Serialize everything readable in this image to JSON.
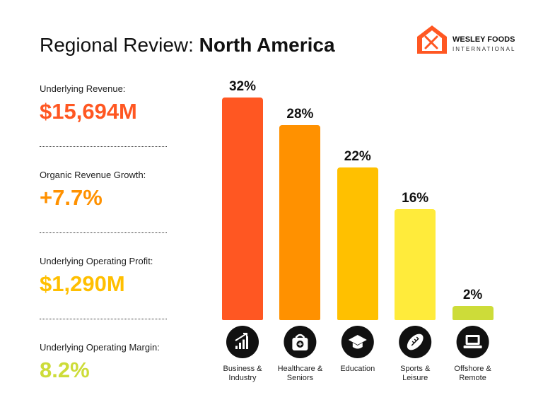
{
  "chart_data": {
    "type": "bar",
    "title_prefix": "Regional Review: ",
    "title_region": "North America",
    "brand": "WESLEY FOODS",
    "brand_subtitle": "INTERNATIONAL",
    "kpis": [
      {
        "label": "Underlying Revenue:",
        "value": "$15,694M",
        "color": "#ff5722"
      },
      {
        "label": "Organic Revenue Growth:",
        "value": "+7.7%",
        "color": "#ff9100"
      },
      {
        "label": "Underlying Operating Profit:",
        "value": "$1,290M",
        "color": "#ffbf00"
      },
      {
        "label": "Underlying Operating Margin:",
        "value": "8.2%",
        "color": "#cddc39"
      }
    ],
    "categories": [
      "Business & Industry",
      "Healthcare & Seniors",
      "Education",
      "Sports & Leisure",
      "Offshore & Remote"
    ],
    "values": [
      32,
      28,
      22,
      16,
      2
    ],
    "value_labels": [
      "32%",
      "28%",
      "22%",
      "16%",
      "2%"
    ],
    "colors": [
      "#ff5722",
      "#ff9100",
      "#ffc000",
      "#ffeb3b",
      "#cddc39"
    ]
  }
}
